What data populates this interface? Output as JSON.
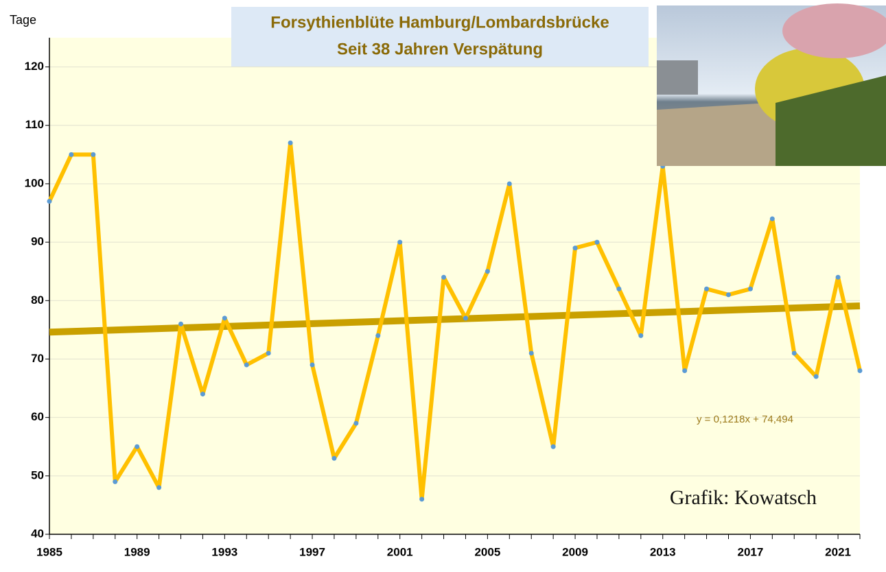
{
  "chart_data": {
    "type": "line",
    "title": "Forsythienblüte Hamburg/Lombardsbrücke",
    "subtitle": "Seit 38 Jahren Verspätung",
    "y_label": "Tage",
    "annotation": "Grafik: Kowatsch",
    "x": [
      1985,
      1986,
      1987,
      1988,
      1989,
      1990,
      1991,
      1992,
      1993,
      1994,
      1995,
      1996,
      1997,
      1998,
      1999,
      2000,
      2001,
      2002,
      2003,
      2004,
      2005,
      2006,
      2007,
      2008,
      2009,
      2010,
      2011,
      2012,
      2013,
      2014,
      2015,
      2016,
      2017,
      2018,
      2019,
      2020,
      2021,
      2022
    ],
    "values": [
      97,
      105,
      105,
      49,
      55,
      48,
      76,
      64,
      77,
      69,
      71,
      107,
      69,
      53,
      59,
      74,
      90,
      46,
      84,
      77,
      85,
      100,
      71,
      55,
      89,
      90,
      82,
      74,
      103,
      68,
      82,
      81,
      82,
      94,
      71,
      67,
      84,
      68
    ],
    "color": "#ffc000",
    "marker_color": "#5b9bd5",
    "trend": {
      "label": "y = 0,1218x + 74,494",
      "values": [
        74.6,
        79.1
      ],
      "color": "#c9a000"
    },
    "xlim": [
      1985,
      2022
    ],
    "xticks": [
      1985,
      1989,
      1993,
      1997,
      2001,
      2005,
      2009,
      2013,
      2017,
      2021
    ],
    "ylim": [
      40,
      125
    ],
    "yticks": [
      40,
      50,
      60,
      70,
      80,
      90,
      100,
      110,
      120
    ],
    "grid": true
  }
}
